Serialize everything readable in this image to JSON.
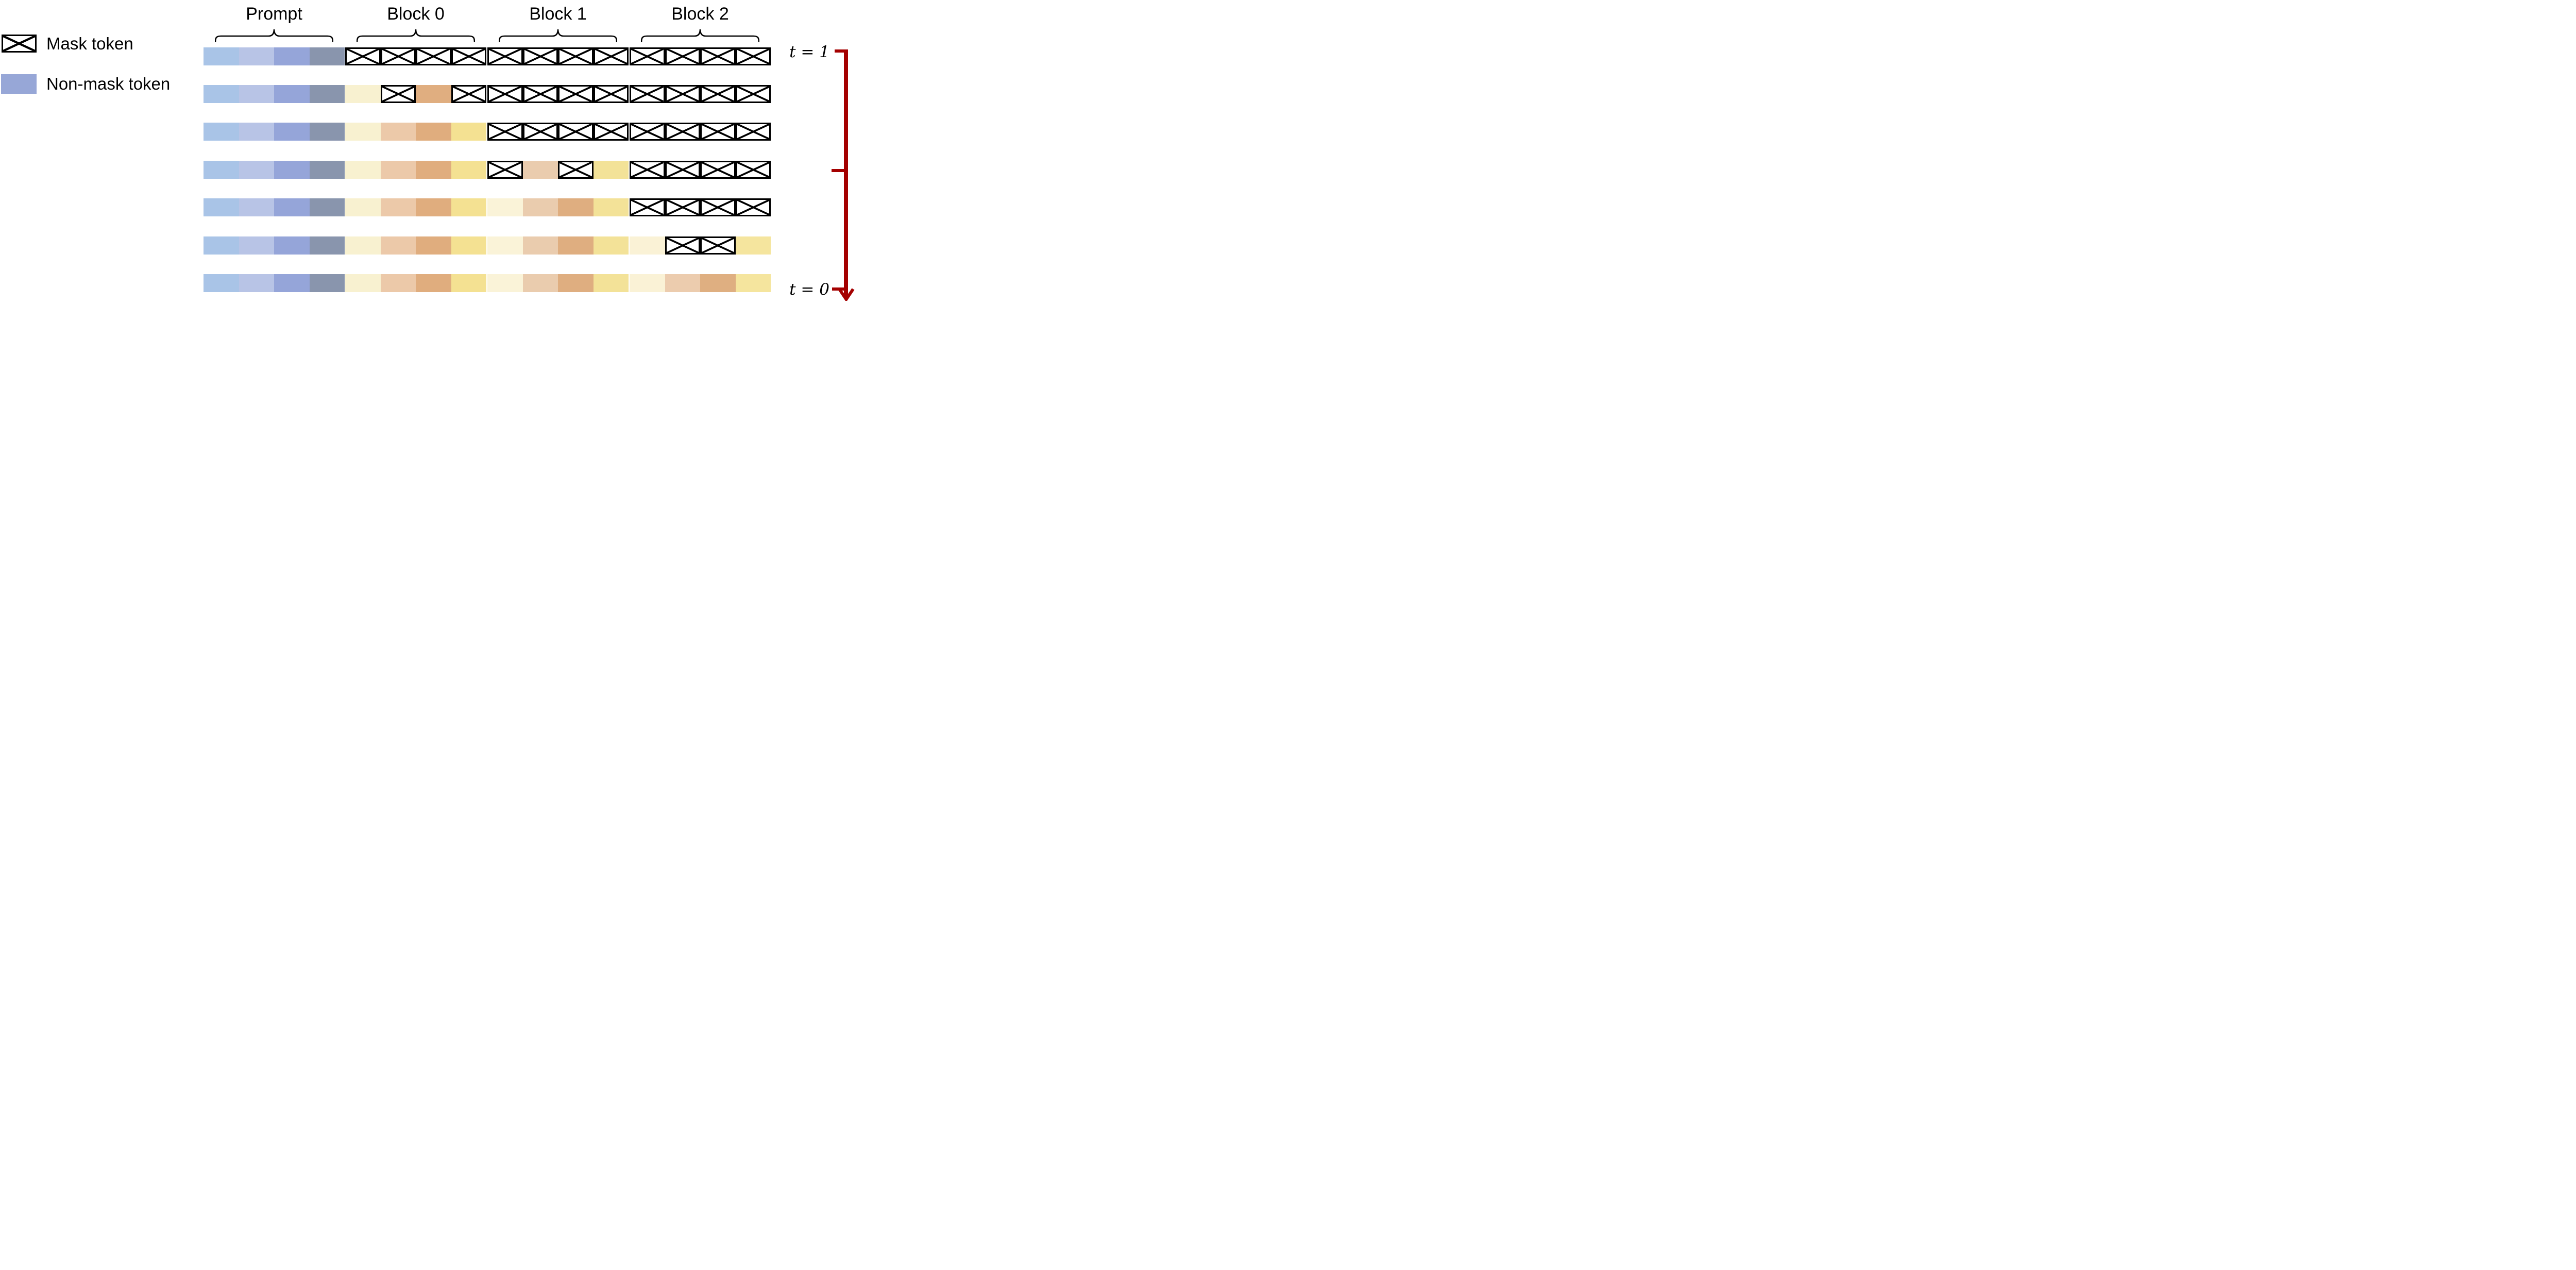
{
  "legend": {
    "items": [
      {
        "id": "mask",
        "label": "Mask token"
      },
      {
        "id": "non-mask",
        "label": "Non-mask token",
        "color": "#97a7d7"
      }
    ]
  },
  "groups": [
    {
      "label": "Prompt"
    },
    {
      "label": "Block 0"
    },
    {
      "label": "Block 1"
    },
    {
      "label": "Block 2"
    }
  ],
  "timeline": {
    "start_label": "t = 1",
    "end_label": "t = 0",
    "arrow_color": "#a40000"
  },
  "grid": {
    "columns_per_group": 4,
    "mask_symbol": "M",
    "mask_border_color": "#000000",
    "rows": [
      {
        "cells": [
          "#a9c4e7",
          "#b8c4e6",
          "#95a5d9",
          "#8995ad",
          "M",
          "M",
          "M",
          "M",
          "M",
          "M",
          "M",
          "M",
          "M",
          "M",
          "M",
          "M"
        ]
      },
      {
        "cells": [
          "#a9c4e7",
          "#b8c4e6",
          "#95a5d9",
          "#8995ad",
          "#f8f1d0",
          "M",
          "#e0ae80",
          "M",
          "M",
          "M",
          "M",
          "M",
          "M",
          "M",
          "M",
          "M"
        ]
      },
      {
        "cells": [
          "#a9c4e7",
          "#b8c4e6",
          "#95a5d9",
          "#8995ad",
          "#f8f1d0",
          "#ecc9a9",
          "#e0ad7e",
          "#f4e192",
          "M",
          "M",
          "M",
          "M",
          "M",
          "M",
          "M",
          "M"
        ]
      },
      {
        "cells": [
          "#a9c4e7",
          "#b8c4e6",
          "#95a5d9",
          "#8995ad",
          "#f8f1d0",
          "#ecc9a9",
          "#e0ad7e",
          "#f4e192",
          "M",
          "#eaccae",
          "M",
          "#f3e298",
          "M",
          "M",
          "M",
          "M"
        ]
      },
      {
        "cells": [
          "#a9c4e7",
          "#b8c4e6",
          "#95a5d9",
          "#8995ad",
          "#f8f1d0",
          "#ecc9a9",
          "#e0ad7e",
          "#f4e192",
          "#faf3d8",
          "#eaccae",
          "#dfae80",
          "#f3e298",
          "M",
          "M",
          "M",
          "M"
        ]
      },
      {
        "cells": [
          "#a9c4e7",
          "#b8c4e6",
          "#95a5d9",
          "#8995ad",
          "#f8f1d0",
          "#ecc9a9",
          "#e0ad7e",
          "#f4e192",
          "#faf3d8",
          "#eaccae",
          "#dfae80",
          "#f3e298",
          "#faf2d6",
          "M",
          "M",
          "#f5e59e"
        ]
      },
      {
        "cells": [
          "#a9c4e7",
          "#b8c4e6",
          "#95a5d9",
          "#8995ad",
          "#f8f1d0",
          "#ecc9a9",
          "#e0ad7e",
          "#f4e192",
          "#faf3d8",
          "#eaccae",
          "#dfae80",
          "#f3e298",
          "#faf2d6",
          "#ecccae",
          "#dfaf81",
          "#f5e59e"
        ]
      }
    ]
  }
}
